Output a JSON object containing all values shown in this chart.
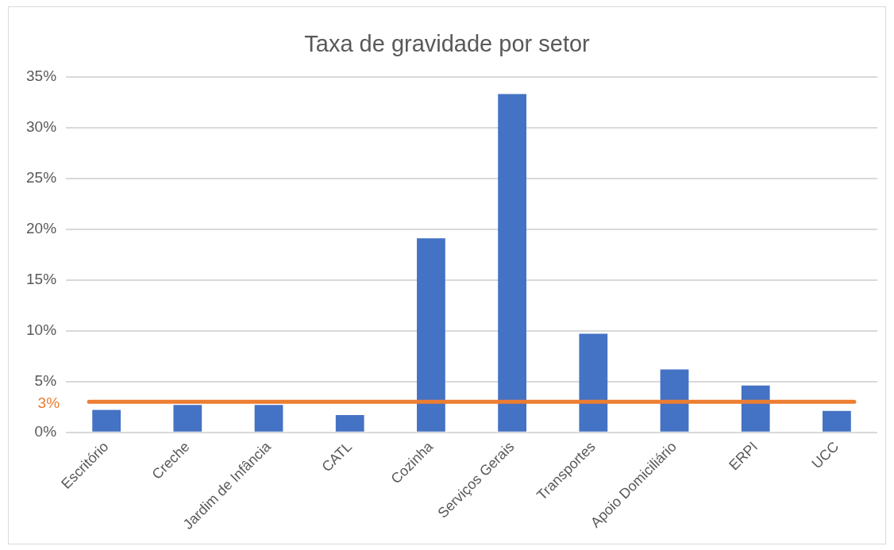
{
  "chart_data": {
    "type": "bar",
    "title": "Taxa de gravidade por setor",
    "categories": [
      "Escritório",
      "Creche",
      "Jardim de Infância",
      "CATL",
      "Cozinha",
      "Serviços Gerais",
      "Transportes",
      "Apoio Domiciliário",
      "ERPI",
      "UCC"
    ],
    "values": [
      2.2,
      2.7,
      2.7,
      1.7,
      19.1,
      33.3,
      9.7,
      6.2,
      4.6,
      2.1
    ],
    "color": "#4472c4",
    "ylim": [
      0,
      35
    ],
    "yticks": [
      {
        "value": 0,
        "label": "0%"
      },
      {
        "value": 5,
        "label": "5%"
      },
      {
        "value": 10,
        "label": "10%"
      },
      {
        "value": 15,
        "label": "15%"
      },
      {
        "value": 20,
        "label": "20%"
      },
      {
        "value": 25,
        "label": "25%"
      },
      {
        "value": 30,
        "label": "30%"
      },
      {
        "value": 35,
        "label": "35%"
      }
    ],
    "grid": "y",
    "legend": false,
    "ref_lines": [
      {
        "axis": "y",
        "value": 3,
        "label": "3%",
        "color": "#ed7d31",
        "line_style": "solid"
      }
    ]
  }
}
